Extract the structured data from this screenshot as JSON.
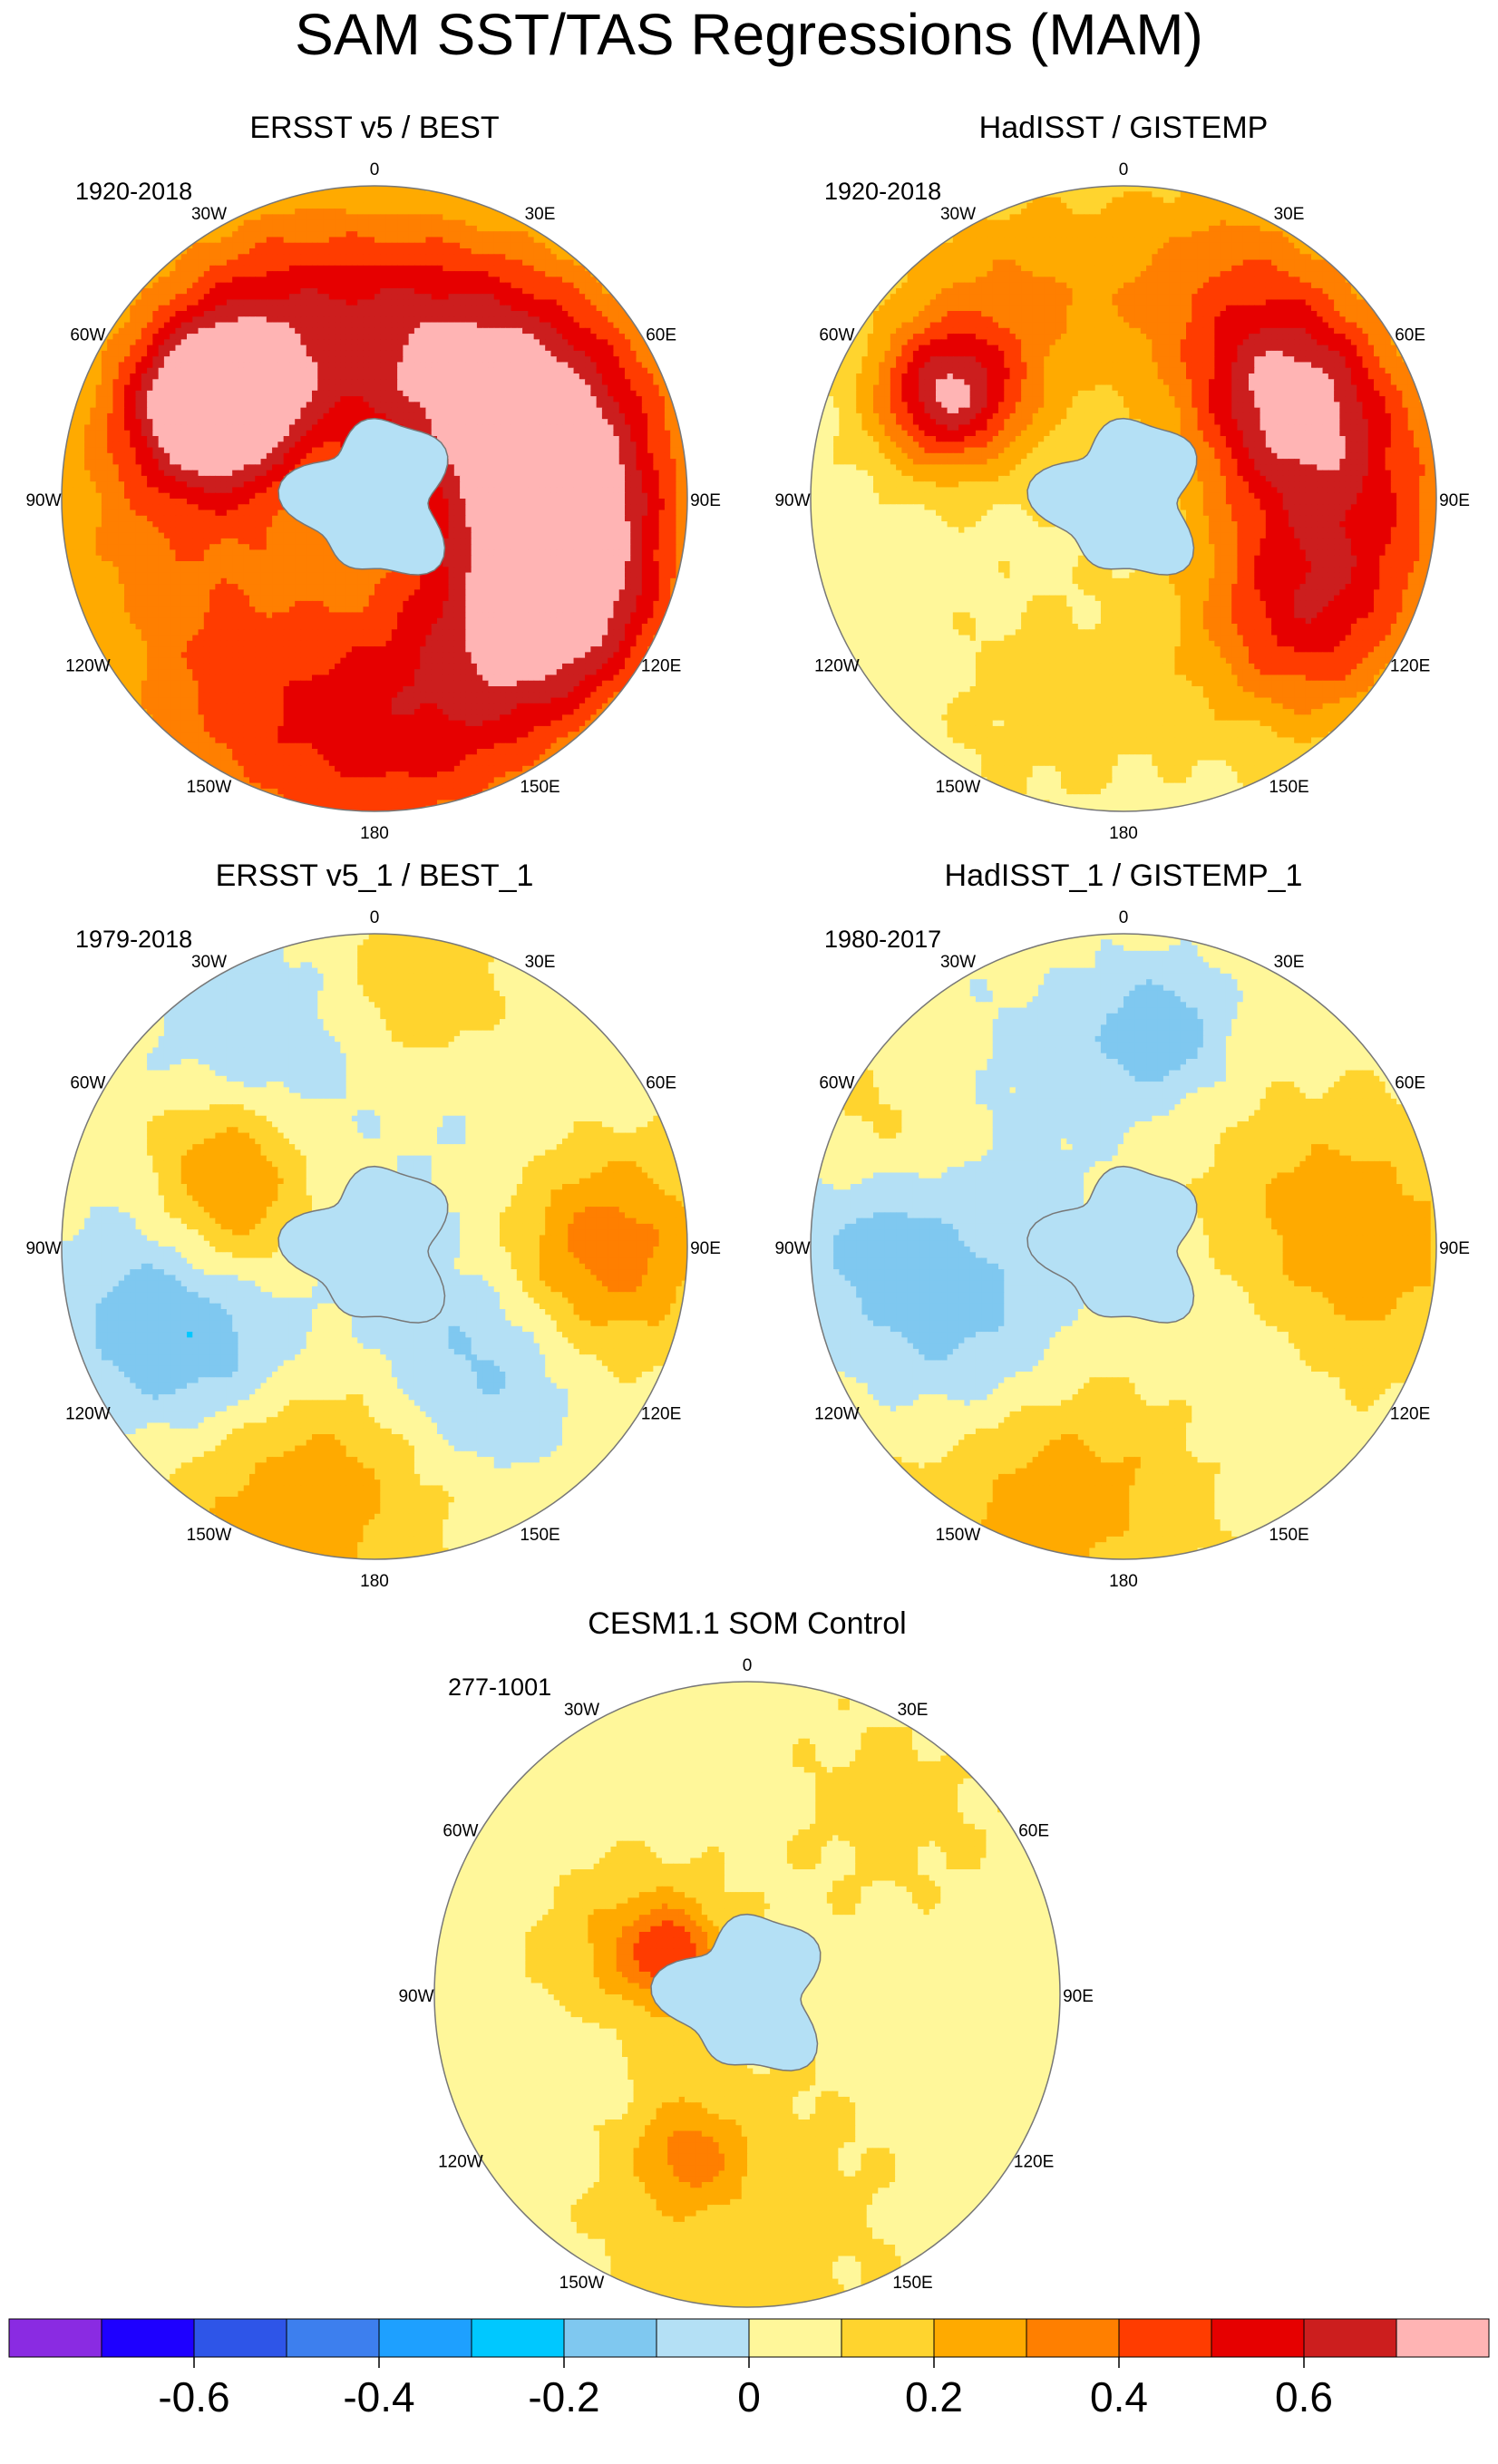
{
  "figure": {
    "title": "SAM SST/TAS Regressions (MAM)"
  },
  "chart_data": [
    {
      "type": "heatmap",
      "projection": "south polar stereographic",
      "title": "ERSST v5 / BEST",
      "period": "1920-2018",
      "lon_labels": [
        "0",
        "30E",
        "60E",
        "90E",
        "120E",
        "150E",
        "180",
        "150W",
        "120W",
        "90W",
        "60W",
        "30W"
      ],
      "blobs": [
        {
          "lon": 20,
          "r": 0.55,
          "rad": 0.3,
          "value": 0.35
        },
        {
          "lon": 60,
          "r": 0.6,
          "rad": 0.32,
          "value": 0.45
        },
        {
          "lon": 90,
          "r": 0.6,
          "rad": 0.28,
          "value": 0.4
        },
        {
          "lon": 120,
          "r": 0.72,
          "rad": 0.25,
          "value": 0.45
        },
        {
          "lon": 150,
          "r": 0.65,
          "rad": 0.3,
          "value": 0.3
        },
        {
          "lon": 180,
          "r": 0.85,
          "rad": 0.35,
          "value": 0.3
        },
        {
          "lon": 215,
          "r": 0.8,
          "rad": 0.3,
          "value": 0.25
        },
        {
          "lon": 270,
          "r": 0.7,
          "rad": 0.35,
          "value": 0.25
        },
        {
          "lon": 300,
          "r": 0.6,
          "rad": 0.18,
          "value": 0.65
        },
        {
          "lon": 330,
          "r": 0.65,
          "rad": 0.3,
          "value": 0.4
        },
        {
          "lon": 250,
          "r": 0.35,
          "rad": 0.25,
          "value": 0.05
        }
      ]
    },
    {
      "type": "heatmap",
      "projection": "south polar stereographic",
      "title": "HadISST / GISTEMP",
      "period": "1920-2018",
      "lon_labels": [
        "0",
        "30E",
        "60E",
        "90E",
        "120E",
        "150E",
        "180",
        "150W",
        "120W",
        "90W",
        "60W",
        "30W"
      ],
      "blobs": [
        {
          "lon": 30,
          "r": 0.75,
          "rad": 0.3,
          "value": 0.3
        },
        {
          "lon": 60,
          "r": 0.62,
          "rad": 0.22,
          "value": 0.45
        },
        {
          "lon": 90,
          "r": 0.75,
          "rad": 0.3,
          "value": 0.35
        },
        {
          "lon": 125,
          "r": 0.7,
          "rad": 0.25,
          "value": 0.4
        },
        {
          "lon": 300,
          "r": 0.65,
          "rad": 0.16,
          "value": 0.55
        },
        {
          "lon": 330,
          "r": 0.7,
          "rad": 0.3,
          "value": 0.25
        },
        {
          "lon": 200,
          "r": 0.7,
          "rad": 0.3,
          "value": 0.08
        },
        {
          "lon": 0,
          "r": 0.4,
          "rad": 0.2,
          "value": -0.05
        }
      ]
    },
    {
      "type": "heatmap",
      "projection": "south polar stereographic",
      "title": "ERSST v5_1 / BEST_1",
      "period": "1979-2018",
      "lon_labels": [
        "0",
        "30E",
        "60E",
        "90E",
        "120E",
        "150E",
        "180",
        "150W",
        "120W",
        "90W",
        "60W",
        "30W"
      ],
      "blobs": [
        {
          "lon": 90,
          "r": 0.72,
          "rad": 0.24,
          "value": 0.35
        },
        {
          "lon": 200,
          "r": 0.8,
          "rad": 0.35,
          "value": 0.25
        },
        {
          "lon": 245,
          "r": 0.62,
          "rad": 0.28,
          "value": -0.35
        },
        {
          "lon": 140,
          "r": 0.5,
          "rad": 0.25,
          "value": -0.2
        },
        {
          "lon": 300,
          "r": 0.55,
          "rad": 0.18,
          "value": 0.25
        },
        {
          "lon": 330,
          "r": 0.75,
          "rad": 0.25,
          "value": -0.15
        },
        {
          "lon": 270,
          "r": 0.45,
          "rad": 0.18,
          "value": 0.2
        },
        {
          "lon": 10,
          "r": 0.85,
          "rad": 0.2,
          "value": 0.15
        },
        {
          "lon": 60,
          "r": 0.5,
          "rad": 0.3,
          "value": -0.08
        }
      ]
    },
    {
      "type": "heatmap",
      "projection": "south polar stereographic",
      "title": "HadISST_1 / GISTEMP_1",
      "period": "1980-2017",
      "lon_labels": [
        "0",
        "30E",
        "60E",
        "90E",
        "120E",
        "150E",
        "180",
        "150W",
        "120W",
        "90W",
        "60W",
        "30W"
      ],
      "blobs": [
        {
          "lon": 90,
          "r": 0.7,
          "rad": 0.3,
          "value": 0.25
        },
        {
          "lon": 200,
          "r": 0.75,
          "rad": 0.35,
          "value": 0.25
        },
        {
          "lon": 235,
          "r": 0.55,
          "rad": 0.28,
          "value": -0.25
        },
        {
          "lon": 270,
          "r": 0.8,
          "rad": 0.2,
          "value": -0.15
        },
        {
          "lon": 330,
          "r": 0.6,
          "rad": 0.3,
          "value": -0.08
        },
        {
          "lon": 10,
          "r": 0.7,
          "rad": 0.15,
          "value": -0.2
        },
        {
          "lon": 130,
          "r": 0.5,
          "rad": 0.25,
          "value": -0.1
        },
        {
          "lon": 300,
          "r": 0.85,
          "rad": 0.2,
          "value": 0.1
        }
      ]
    },
    {
      "type": "heatmap",
      "projection": "south polar stereographic",
      "title": "CESM1.1 SOM Control",
      "period": "277-1001",
      "lon_labels": [
        "0",
        "30E",
        "60E",
        "90E",
        "120E",
        "150E",
        "180",
        "150W",
        "120W",
        "90W",
        "60W",
        "30W"
      ],
      "blobs": [
        {
          "lon": 290,
          "r": 0.4,
          "rad": 0.2,
          "value": 0.18
        },
        {
          "lon": 300,
          "r": 0.28,
          "rad": 0.1,
          "value": 0.3
        },
        {
          "lon": 180,
          "r": 0.65,
          "rad": 0.4,
          "value": 0.1
        },
        {
          "lon": 200,
          "r": 0.55,
          "rad": 0.12,
          "value": 0.22
        },
        {
          "lon": 40,
          "r": 0.75,
          "rad": 0.3,
          "value": 0.08
        },
        {
          "lon": 250,
          "r": 0.55,
          "rad": 0.12,
          "value": -0.08
        },
        {
          "lon": 100,
          "r": 0.7,
          "rad": 0.35,
          "value": -0.03
        }
      ]
    }
  ],
  "colorbar": {
    "levels": [
      -0.7,
      -0.6,
      -0.5,
      -0.4,
      -0.3,
      -0.2,
      -0.1,
      0,
      0.1,
      0.2,
      0.3,
      0.4,
      0.5,
      0.6,
      0.7
    ],
    "colors": [
      "#8a2be2",
      "#1e00ff",
      "#2e55e8",
      "#3d7fee",
      "#1ea0ff",
      "#00c8ff",
      "#7fc8f0",
      "#b4e0f5",
      "#fff79a",
      "#ffd42e",
      "#ffaa00",
      "#ff7f00",
      "#ff3c00",
      "#e60000",
      "#cc1e1e",
      "#ffb4b4"
    ],
    "tick_labels": [
      "-0.6",
      "-0.4",
      "-0.2",
      "0",
      "0.2",
      "0.4",
      "0.6"
    ],
    "tick_values": [
      -0.6,
      -0.4,
      -0.2,
      0,
      0.2,
      0.4,
      0.6
    ]
  }
}
